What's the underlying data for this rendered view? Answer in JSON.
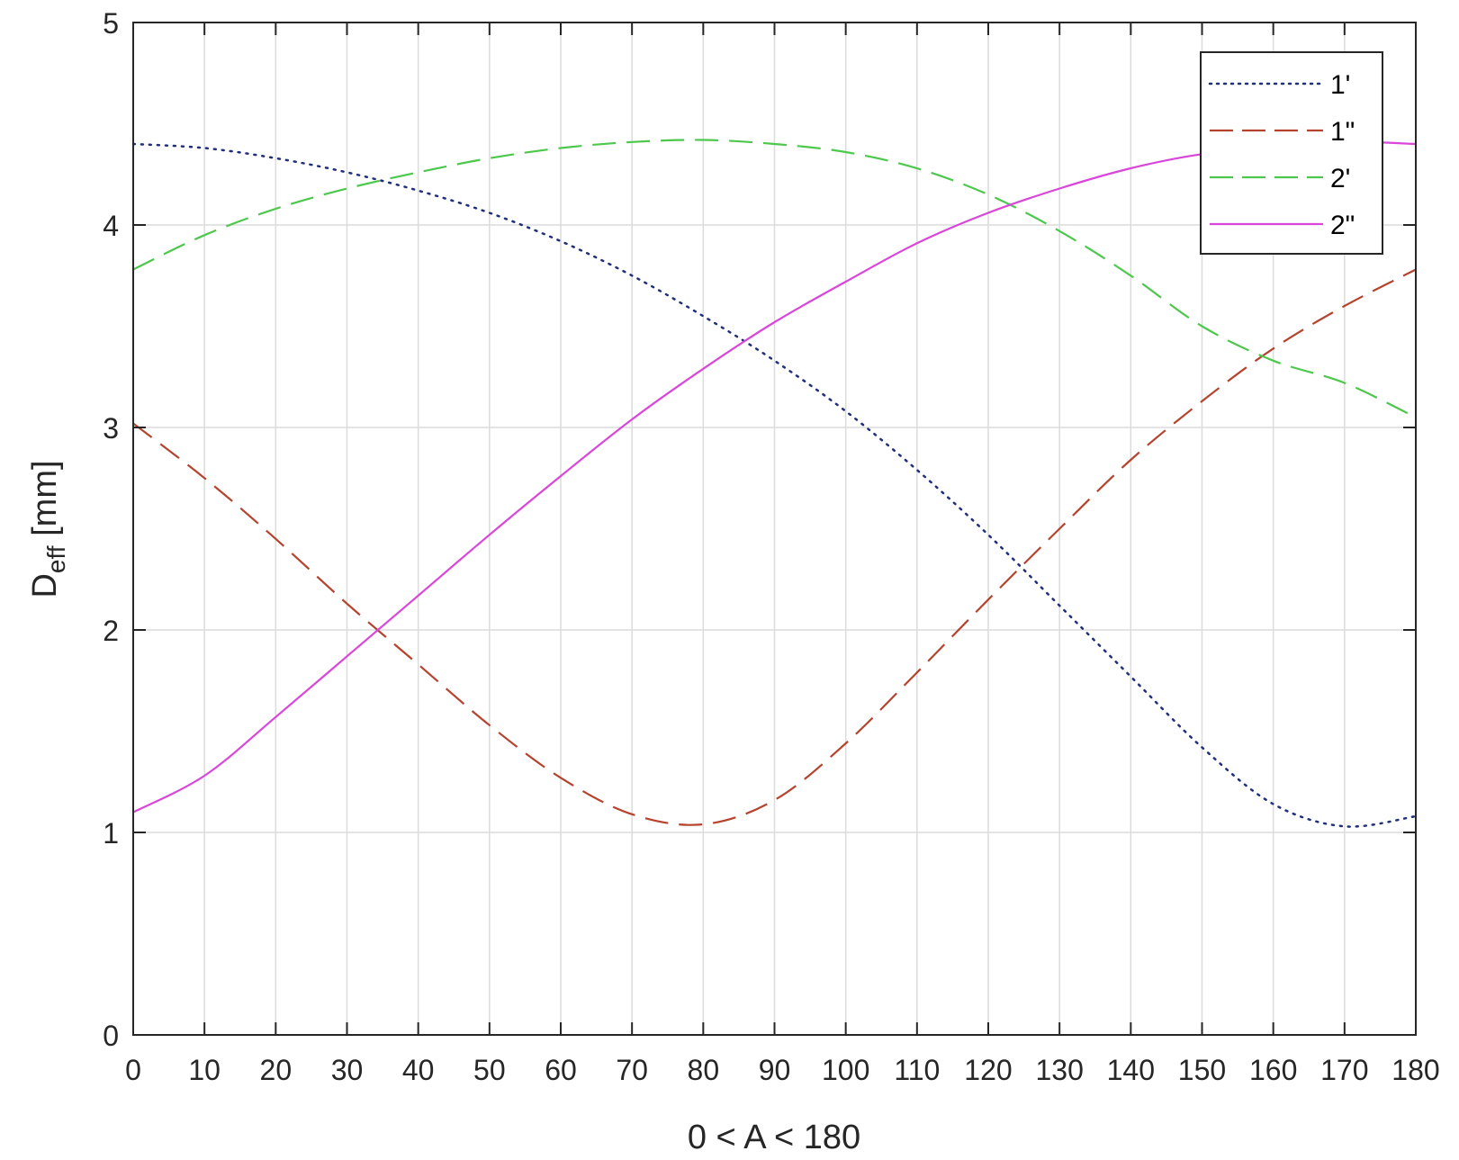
{
  "chart_data": {
    "type": "line",
    "title": "",
    "xlabel": "0 < A < 180",
    "ylabel": {
      "main": "D",
      "sub": "eff",
      "unit": " [mm]"
    },
    "xlim": [
      0,
      180
    ],
    "ylim": [
      0,
      5
    ],
    "xticks": [
      0,
      10,
      20,
      30,
      40,
      50,
      60,
      70,
      80,
      90,
      100,
      110,
      120,
      130,
      140,
      150,
      160,
      170,
      180
    ],
    "yticks": [
      0,
      1,
      2,
      3,
      4,
      5
    ],
    "grid": true,
    "legend_position": "top-right",
    "x": [
      0,
      10,
      20,
      30,
      40,
      50,
      60,
      70,
      80,
      90,
      100,
      110,
      120,
      130,
      140,
      150,
      160,
      170,
      180
    ],
    "series": [
      {
        "name": "1'",
        "color": "#1f2f7a",
        "style": "dotted",
        "values": [
          4.4,
          4.38,
          4.33,
          4.26,
          4.17,
          4.06,
          3.92,
          3.75,
          3.55,
          3.33,
          3.08,
          2.79,
          2.47,
          2.12,
          1.77,
          1.42,
          1.14,
          1.03,
          1.08
        ]
      },
      {
        "name": "1\"",
        "color": "#b5432d",
        "style": "dashed",
        "values": [
          3.02,
          2.75,
          2.45,
          2.13,
          1.83,
          1.53,
          1.27,
          1.09,
          1.04,
          1.16,
          1.44,
          1.79,
          2.15,
          2.5,
          2.84,
          3.13,
          3.39,
          3.6,
          3.78
        ]
      },
      {
        "name": "2'",
        "color": "#4dc84d",
        "style": "dashed",
        "values": [
          3.78,
          3.95,
          4.08,
          4.18,
          4.26,
          4.33,
          4.38,
          4.41,
          4.42,
          4.4,
          4.36,
          4.28,
          4.15,
          3.97,
          3.75,
          3.5,
          3.33,
          3.22,
          3.05
        ]
      },
      {
        "name": "2\"",
        "color": "#d946d9",
        "style": "solid",
        "values": [
          1.1,
          1.28,
          1.57,
          1.87,
          2.17,
          2.47,
          2.76,
          3.04,
          3.29,
          3.52,
          3.72,
          3.91,
          4.06,
          4.18,
          4.28,
          4.35,
          4.38,
          4.41,
          4.4
        ]
      }
    ]
  }
}
